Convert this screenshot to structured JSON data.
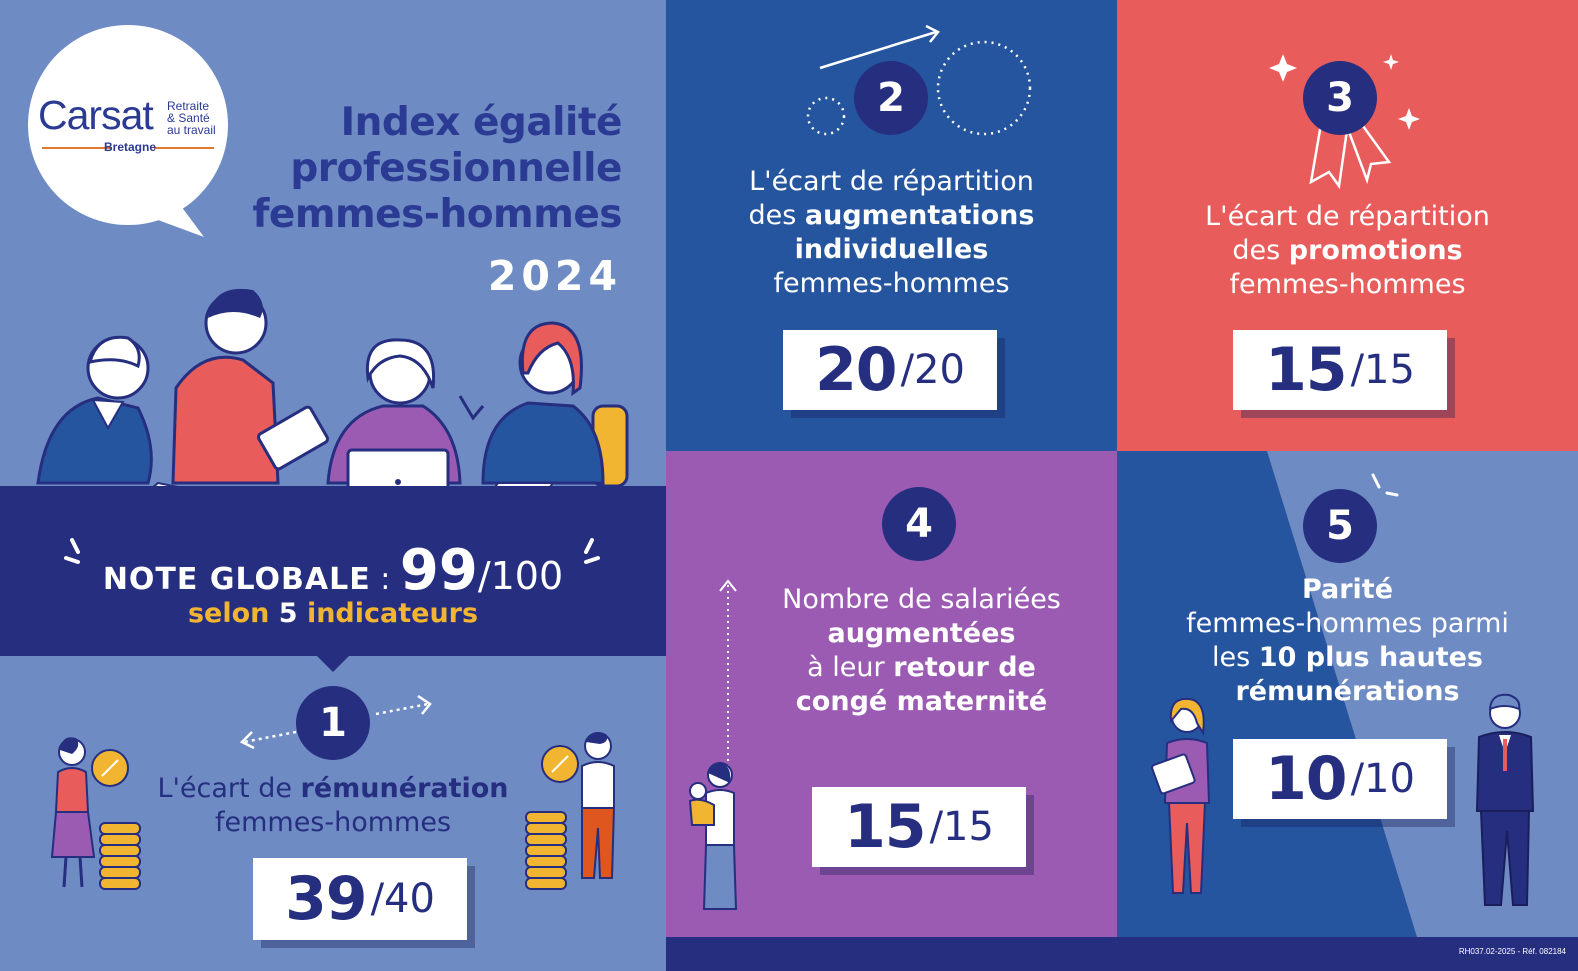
{
  "logo": {
    "brand": "Carsat",
    "tag_line1": "Retraite",
    "tag_line2": "& Santé",
    "tag_line3": "au travail",
    "region": "Bretagne"
  },
  "header": {
    "title_line1": "Index égalité",
    "title_line2": "professionnelle",
    "title_line3": "femmes-hommes",
    "year": "2024"
  },
  "global": {
    "label": "NOTE GLOBALE",
    "separator": " : ",
    "score": "99",
    "max": "/100",
    "sub_pre": "selon ",
    "sub_num": "5",
    "sub_post": " indicateurs"
  },
  "indicators": [
    {
      "number": "1",
      "text_pre": "L'écart de ",
      "text_bold": "rémunération",
      "text_post": "femmes-hommes",
      "score": "39",
      "max": "/40"
    },
    {
      "number": "2",
      "line1": "L'écart de répartition",
      "line2_pre": "des ",
      "line2_bold": "augmentations",
      "line3_bold": "individuelles",
      "line4": "femmes-hommes",
      "score": "20",
      "max": "/20"
    },
    {
      "number": "3",
      "line1": "L'écart de répartition",
      "line2_pre": "des ",
      "line2_bold": "promotions",
      "line3": "femmes-hommes",
      "score": "15",
      "max": "/15"
    },
    {
      "number": "4",
      "line1": "Nombre de salariées",
      "line2_bold": "augmentées",
      "line3_pre": "à leur ",
      "line3_bold": "retour de",
      "line4_bold": "congé maternité",
      "score": "15",
      "max": "/15"
    },
    {
      "number": "5",
      "line1_bold": "Parité",
      "line2": "femmes-hommes parmi",
      "line3_pre": "les ",
      "line3_bold": "10 plus hautes",
      "line4_bold": "rémunérations",
      "score": "10",
      "max": "/10"
    }
  ],
  "footer": {
    "ref": "RH037.02-2025 - Réf. 082184"
  },
  "colors": {
    "navy": "#262e80",
    "blue_panel": "#2655a0",
    "red_panel": "#e85c5c",
    "purple_panel": "#9b5bb3",
    "periwinkle": "#6f8bc4",
    "gold": "#f2b531",
    "title_blue": "#2b3a93"
  },
  "icons": [
    "speech-bubble-logo",
    "meeting-illustration",
    "coin-stack-icon",
    "arrow-icon",
    "ribbon-award-icon",
    "sparkle-icon",
    "mother-child-illustration",
    "woman-man-illustration"
  ]
}
